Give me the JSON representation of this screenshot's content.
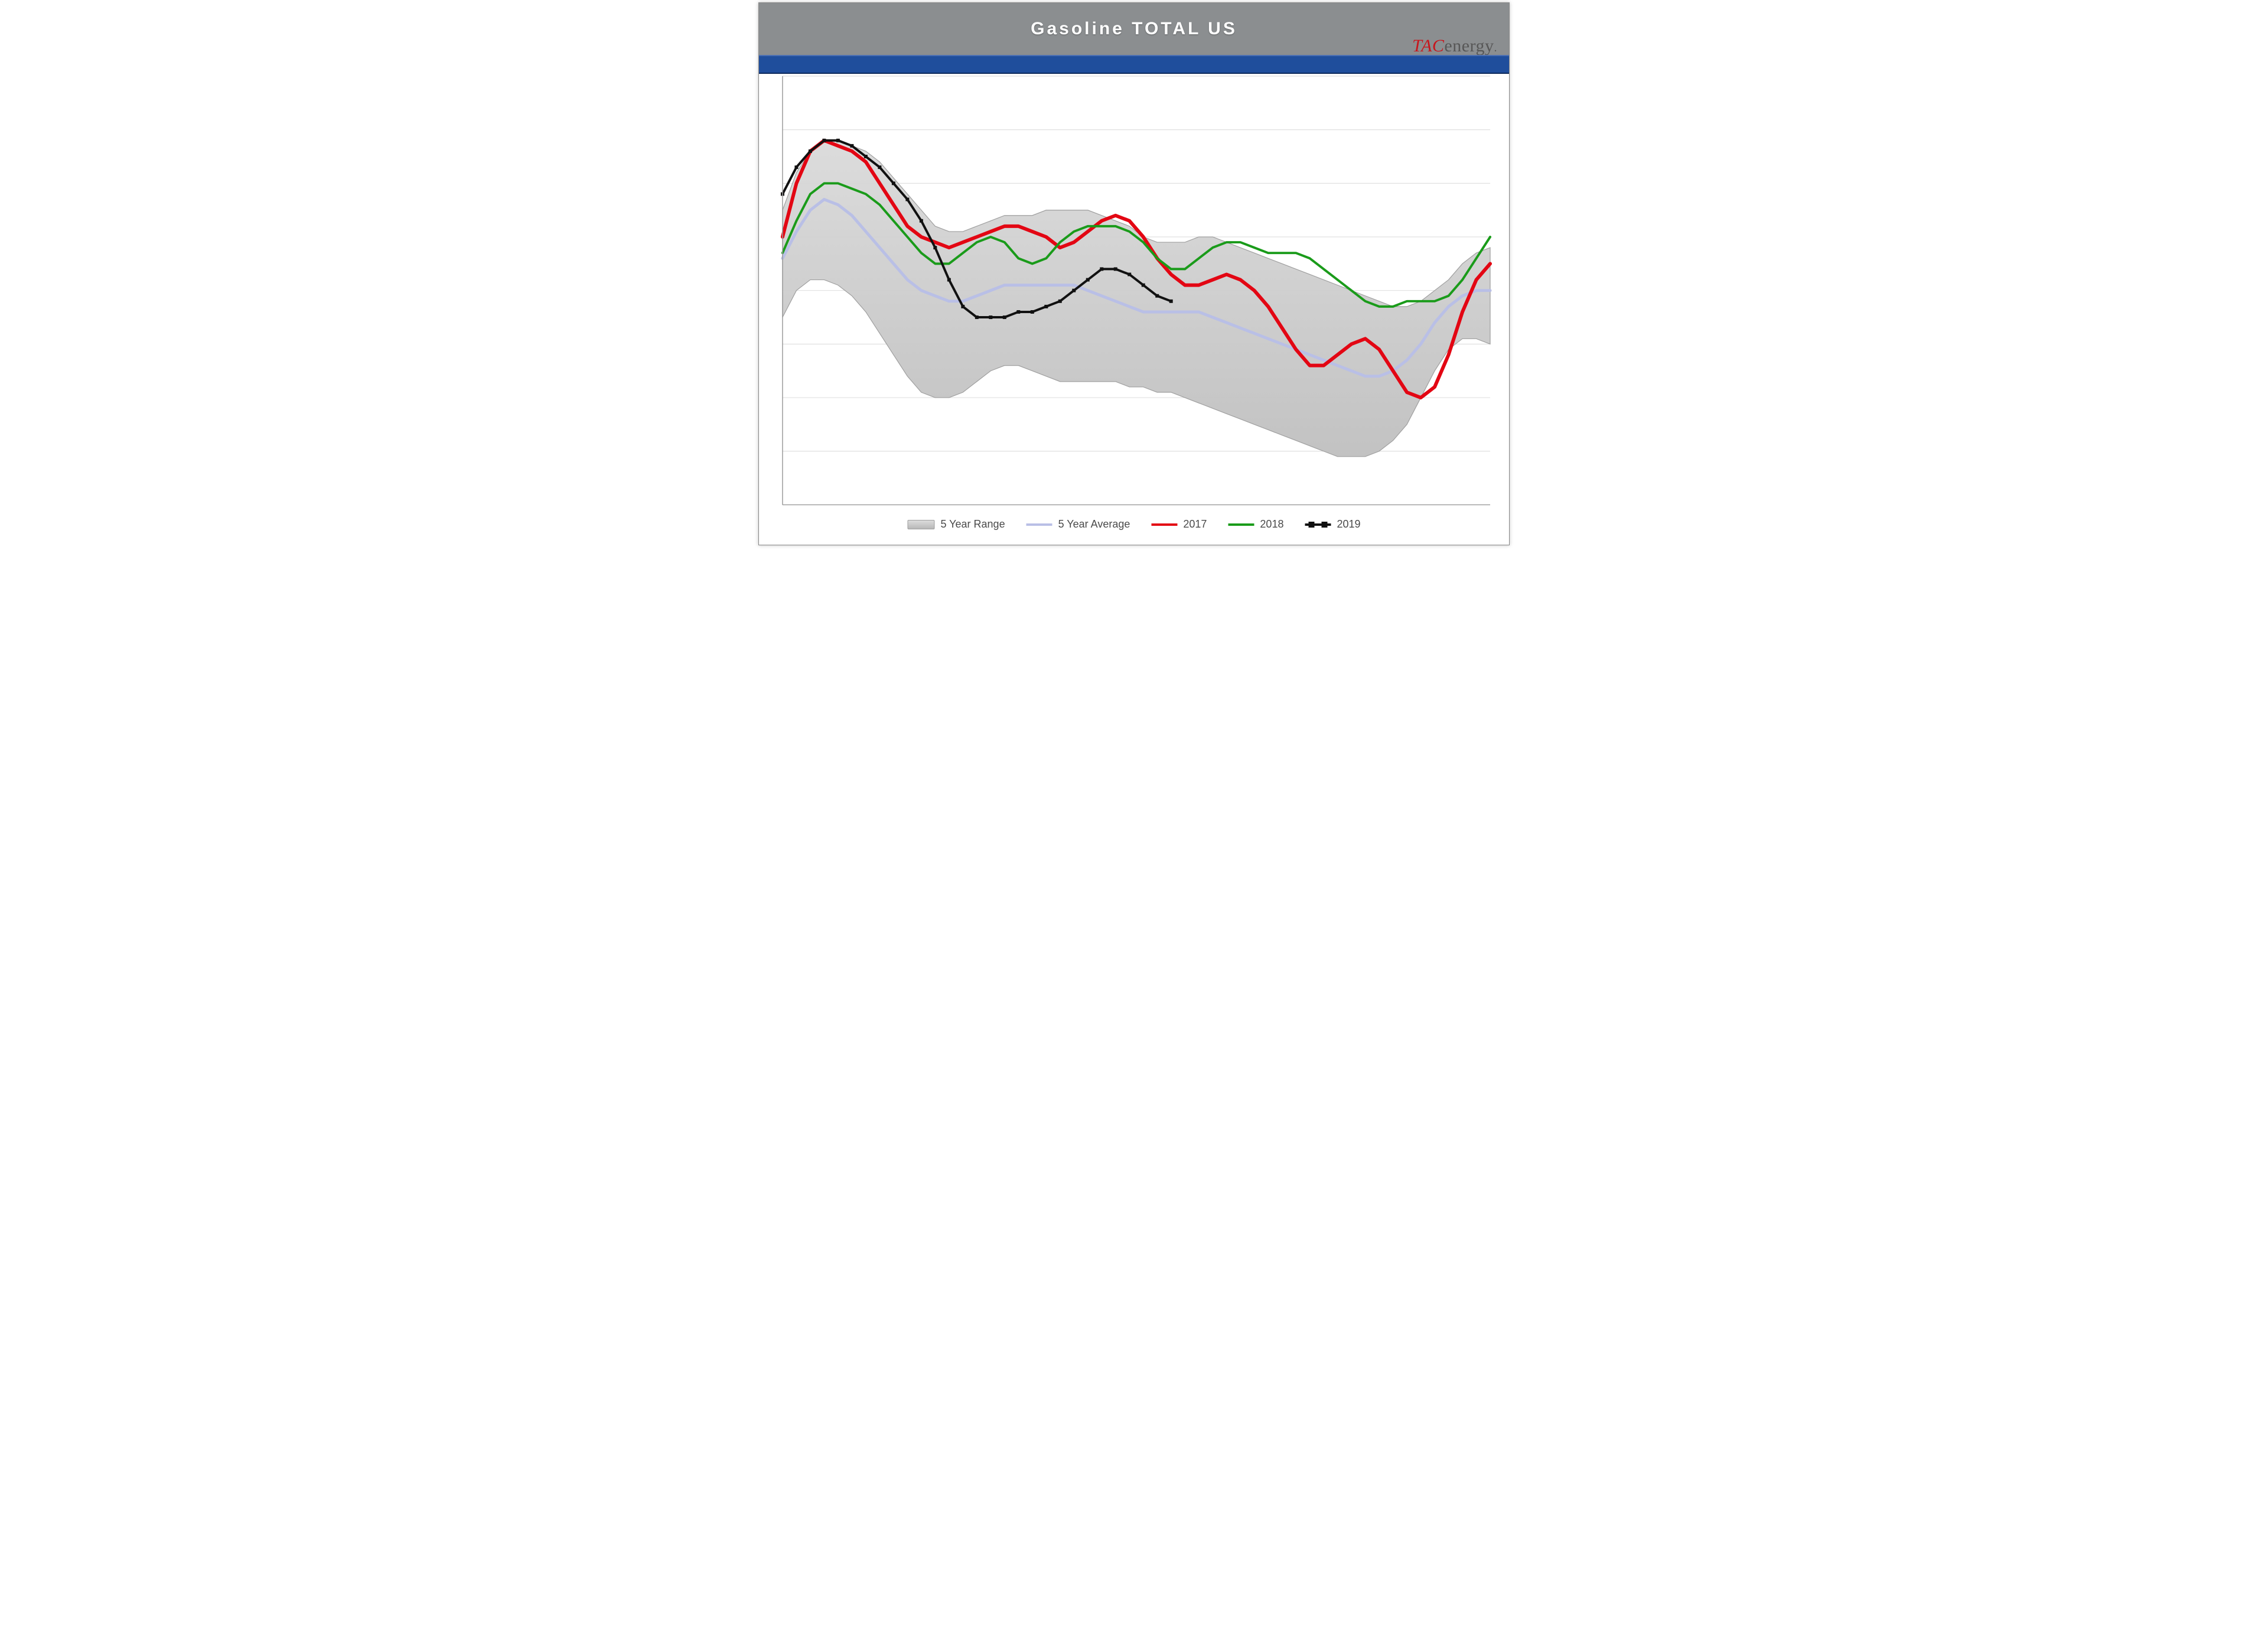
{
  "title": "Gasoline TOTAL US",
  "logo": {
    "left": "TAC",
    "right": "energy"
  },
  "chart": {
    "type": "line+band",
    "n_weeks": 52,
    "ylim": [
      190,
      270
    ],
    "ytick_step": 10,
    "grid_color": "#d8d8d8",
    "plot_border_color": "#9a9a9a",
    "background_color": "#ffffff",
    "range": {
      "fill_top": "#dadada",
      "fill_bottom": "#bfbfbf",
      "stroke": "#9f9f9f",
      "upper": [
        245,
        252,
        256,
        258,
        258,
        257,
        256,
        254,
        251,
        248,
        245,
        242,
        241,
        241,
        242,
        243,
        244,
        244,
        244,
        245,
        245,
        245,
        245,
        244,
        243,
        242,
        240,
        239,
        239,
        239,
        240,
        240,
        239,
        238,
        237,
        236,
        235,
        234,
        233,
        232,
        231,
        230,
        229,
        228,
        227,
        227,
        228,
        230,
        232,
        235,
        237,
        238
      ],
      "lower": [
        225,
        230,
        232,
        232,
        231,
        229,
        226,
        222,
        218,
        214,
        211,
        210,
        210,
        211,
        213,
        215,
        216,
        216,
        215,
        214,
        213,
        213,
        213,
        213,
        213,
        212,
        212,
        211,
        211,
        210,
        209,
        208,
        207,
        206,
        205,
        204,
        203,
        202,
        201,
        200,
        199,
        199,
        199,
        200,
        202,
        205,
        210,
        215,
        219,
        221,
        221,
        220
      ]
    },
    "series": [
      {
        "name": "5 Year Average",
        "color": "#b9bfe6",
        "width": 5,
        "markers": false,
        "values": [
          236,
          241,
          245,
          247,
          246,
          244,
          241,
          238,
          235,
          232,
          230,
          229,
          228,
          228,
          229,
          230,
          231,
          231,
          231,
          231,
          231,
          231,
          230,
          229,
          228,
          227,
          226,
          226,
          226,
          226,
          226,
          225,
          224,
          223,
          222,
          221,
          220,
          219,
          218,
          217,
          216,
          215,
          214,
          214,
          215,
          217,
          220,
          224,
          227,
          229,
          230,
          230
        ]
      },
      {
        "name": "2017",
        "color": "#e30613",
        "width": 6,
        "markers": false,
        "values": [
          240,
          250,
          256,
          258,
          257,
          256,
          254,
          250,
          246,
          242,
          240,
          239,
          238,
          239,
          240,
          241,
          242,
          242,
          241,
          240,
          238,
          239,
          241,
          243,
          244,
          243,
          240,
          236,
          233,
          231,
          231,
          232,
          233,
          232,
          230,
          227,
          223,
          219,
          216,
          216,
          218,
          220,
          221,
          219,
          215,
          211,
          210,
          212,
          218,
          226,
          232,
          235
        ]
      },
      {
        "name": "2018",
        "color": "#1a9b1a",
        "width": 4,
        "markers": false,
        "values": [
          237,
          243,
          248,
          250,
          250,
          249,
          248,
          246,
          243,
          240,
          237,
          235,
          235,
          237,
          239,
          240,
          239,
          236,
          235,
          236,
          239,
          241,
          242,
          242,
          242,
          241,
          239,
          236,
          234,
          234,
          236,
          238,
          239,
          239,
          238,
          237,
          237,
          237,
          236,
          234,
          232,
          230,
          228,
          227,
          227,
          228,
          228,
          228,
          229,
          232,
          236,
          240
        ]
      },
      {
        "name": "2019",
        "color": "#111111",
        "width": 4,
        "markers": true,
        "marker_size": 6,
        "values": [
          248,
          253,
          256,
          258,
          258,
          257,
          255,
          253,
          250,
          247,
          243,
          238,
          232,
          227,
          225,
          225,
          225,
          226,
          226,
          227,
          228,
          230,
          232,
          234,
          234,
          233,
          231,
          229,
          228
        ]
      }
    ],
    "legend": {
      "items": [
        {
          "label": "5 Year Range",
          "kind": "range"
        },
        {
          "label": "5 Year Average",
          "kind": "line",
          "color": "#b9bfe6"
        },
        {
          "label": "2017",
          "kind": "line",
          "color": "#e30613"
        },
        {
          "label": "2018",
          "kind": "line",
          "color": "#1a9b1a"
        },
        {
          "label": "2019",
          "kind": "marker",
          "color": "#111111"
        }
      ],
      "fontsize": 18,
      "text_color": "#4a4a4a"
    }
  }
}
